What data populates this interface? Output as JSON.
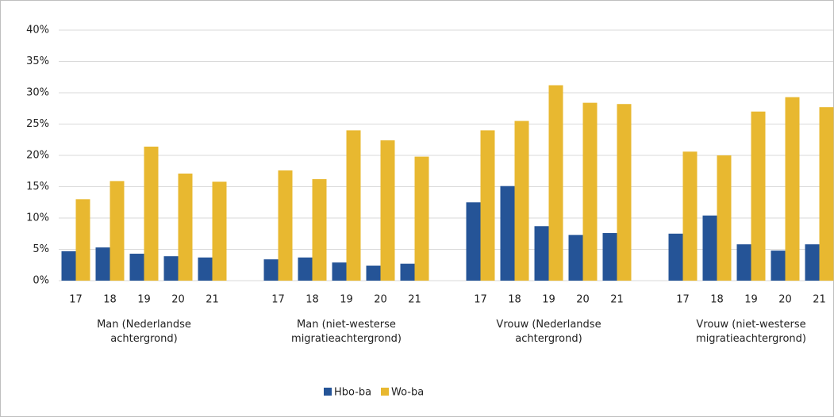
{
  "chart_data": {
    "type": "bar",
    "categories": [
      "17",
      "18",
      "19",
      "20",
      "21",
      "17",
      "18",
      "19",
      "20",
      "21",
      "17",
      "18",
      "19",
      "20",
      "21",
      "17",
      "18",
      "19",
      "20",
      "21"
    ],
    "groups": [
      "Man (Nederlandse achtergrond)",
      "Man (niet-westerse migratieachtergrond)",
      "Vrouw (Nederlandse achtergrond)",
      "Vrouw (niet-westerse migratieachtergrond)"
    ],
    "series": [
      {
        "name": "Hbo-ba",
        "color": "#255497",
        "values": [
          4.7,
          5.3,
          4.3,
          3.9,
          3.7,
          3.4,
          3.7,
          2.9,
          2.4,
          2.7,
          12.5,
          15.1,
          8.7,
          7.3,
          7.6,
          7.5,
          10.4,
          5.8,
          4.8,
          5.8
        ]
      },
      {
        "name": "Wo-ba",
        "color": "#e8b830",
        "values": [
          13.0,
          15.9,
          21.4,
          17.1,
          15.8,
          17.6,
          16.2,
          24.0,
          22.4,
          19.8,
          24.0,
          25.5,
          31.2,
          28.4,
          28.2,
          20.6,
          20.0,
          27.0,
          29.3,
          27.7
        ]
      }
    ],
    "ylim": [
      0,
      40
    ],
    "yticks": [
      {
        "value": 0,
        "label": "0%"
      },
      {
        "value": 5,
        "label": "5%"
      },
      {
        "value": 10,
        "label": "10%"
      },
      {
        "value": 15,
        "label": "15%"
      },
      {
        "value": 20,
        "label": "20%"
      },
      {
        "value": 25,
        "label": "25%"
      },
      {
        "value": 30,
        "label": "30%"
      },
      {
        "value": 35,
        "label": "35%"
      },
      {
        "value": 40,
        "label": "40%"
      }
    ],
    "grid": true,
    "legend": "bottom"
  }
}
